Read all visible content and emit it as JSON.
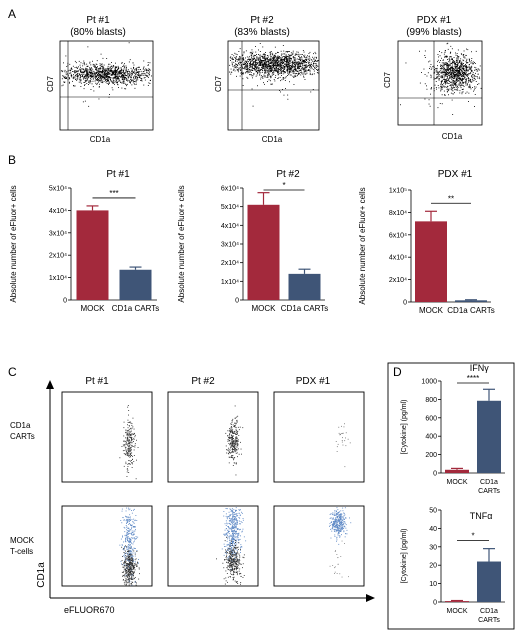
{
  "colors": {
    "mock": "#a3293c",
    "cart": "#3f5577",
    "blue_cells": "#5a86c4",
    "dark_cells": "#2c2c2c",
    "panel_border": "#000000"
  },
  "panels": {
    "A": {
      "letter": "A",
      "plots": [
        {
          "title": "Pt #1",
          "subtitle": "(80% blasts)",
          "xlabel": "CD1a",
          "ylabel": "CD7"
        },
        {
          "title": "Pt #2",
          "subtitle": "(83% blasts)",
          "xlabel": "CD1a",
          "ylabel": "CD7"
        },
        {
          "title": "PDX #1",
          "subtitle": "(99% blasts)",
          "xlabel": "CD1a",
          "ylabel": "CD7"
        }
      ]
    },
    "B": {
      "letter": "B"
    },
    "C": {
      "letter": "C",
      "columns": [
        "Pt #1",
        "Pt #2",
        "PDX #1"
      ],
      "row_labels": [
        {
          "line1": "CD1a",
          "line2": "CARTs"
        },
        {
          "line1": "MOCK",
          "line2": "T-cells"
        }
      ],
      "xaxis": "eFLUOR670",
      "yaxis": "CD1a"
    },
    "D": {
      "letter": "D"
    }
  },
  "chart_data": [
    {
      "type": "bar",
      "panel": "B",
      "title": "Pt #1",
      "categories": [
        "MOCK",
        "CD1a CARTs"
      ],
      "values": [
        40000,
        13500
      ],
      "errors": [
        2000,
        1200
      ],
      "ylabel": "Absolute number of eFluor+ cells",
      "ylim": [
        0,
        50000
      ],
      "ytick_labels": [
        "0",
        "1x10⁴",
        "2x10⁴",
        "3x10⁴",
        "4x10⁴",
        "5x10⁴"
      ],
      "significance": "***"
    },
    {
      "type": "bar",
      "panel": "B",
      "title": "Pt #2",
      "categories": [
        "MOCK",
        "CD1a CARTs"
      ],
      "values": [
        51000,
        14000
      ],
      "errors": [
        6500,
        2500
      ],
      "ylabel": "Absolute number of eFluor+ cells",
      "ylim": [
        0,
        60000
      ],
      "ytick_labels": [
        "0",
        "1x10⁴",
        "2x10⁴",
        "3x10⁴",
        "4x10⁴",
        "5x10⁴",
        "6x10⁴"
      ],
      "significance": "*"
    },
    {
      "type": "bar",
      "panel": "B",
      "title": "PDX #1",
      "categories": [
        "MOCK",
        "CD1a CARTs"
      ],
      "values": [
        72000,
        1500
      ],
      "errors": [
        9000,
        500
      ],
      "ylabel": "Absolute number of eFluor+ cells",
      "ylim": [
        0,
        100000
      ],
      "ytick_labels": [
        "0",
        "2x10⁴",
        "4x10⁴",
        "6x10⁴",
        "8x10⁴",
        "1x10⁵"
      ],
      "significance": "**"
    },
    {
      "type": "bar",
      "panel": "D",
      "title": "IFNγ",
      "categories": [
        "MOCK",
        "CD1a\nCARTs"
      ],
      "values": [
        35,
        785
      ],
      "errors": [
        15,
        125
      ],
      "ylabel": "[Cytokine] (pg/ml)",
      "ylim": [
        0,
        1000
      ],
      "ytick_labels": [
        "0",
        "200",
        "400",
        "600",
        "800",
        "1000"
      ],
      "significance": "****"
    },
    {
      "type": "bar",
      "panel": "D",
      "title": "TNFα",
      "categories": [
        "MOCK",
        "CD1a\nCARTs"
      ],
      "values": [
        0.5,
        22
      ],
      "errors": [
        0.3,
        7
      ],
      "ylabel": "[Cytokine] (pg/ml)",
      "ylim": [
        0,
        50
      ],
      "ytick_labels": [
        "0",
        "10",
        "20",
        "30",
        "40",
        "50"
      ],
      "significance": "*"
    }
  ]
}
